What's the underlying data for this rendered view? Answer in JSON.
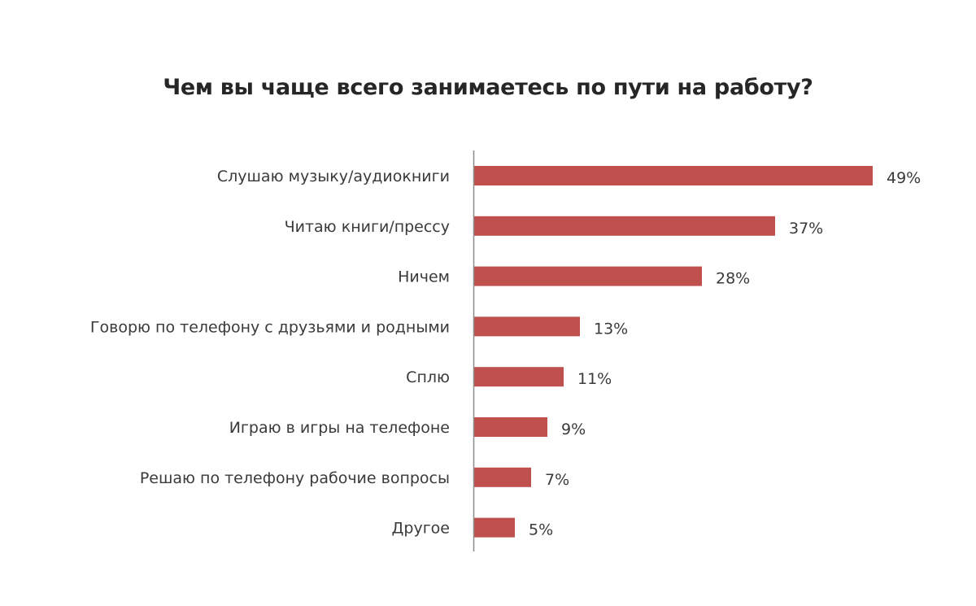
{
  "chart_data": {
    "type": "bar",
    "orientation": "horizontal",
    "title": "Чем вы чаще всего занимаетесь по пути на работу?",
    "categories": [
      "Слушаю музыку/аудиокниги",
      "Читаю книги/прессу",
      "Ничем",
      "Говорю по телефону с друзьями и родными",
      "Сплю",
      "Играю в игры на телефоне",
      "Решаю по телефону рабочие вопросы",
      "Другое"
    ],
    "values": [
      49,
      37,
      28,
      13,
      11,
      9,
      7,
      5
    ],
    "value_labels": [
      "49%",
      "37%",
      "28%",
      "13%",
      "11%",
      "9%",
      "7%",
      "5%"
    ],
    "unit": "%",
    "xlim": [
      0,
      50
    ],
    "grid": false,
    "legend": "none",
    "bar_color": "#c0504d"
  }
}
